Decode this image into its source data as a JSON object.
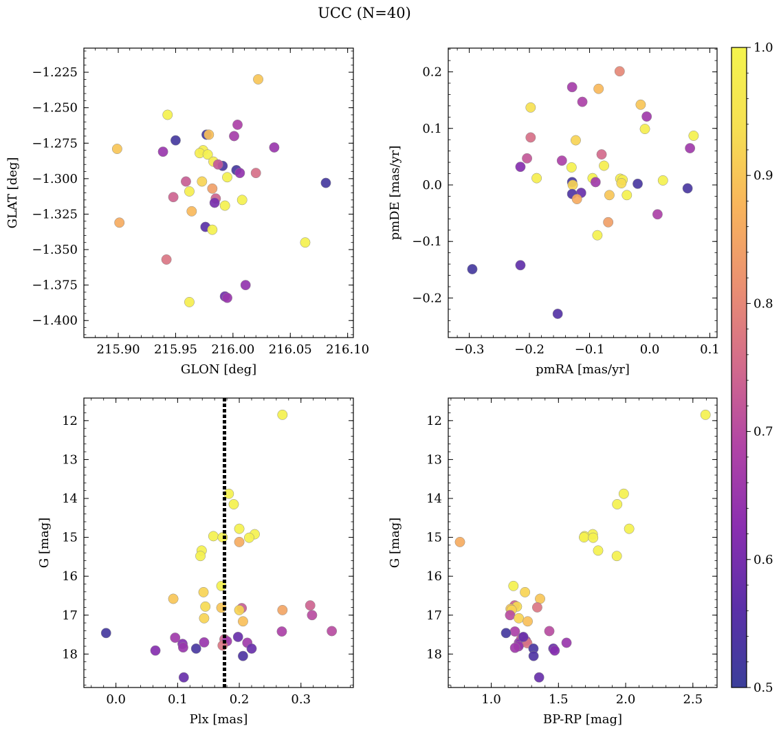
{
  "figure": {
    "title": "UCC (N=40)"
  },
  "colorbar": {
    "range": [
      0.5,
      1.0
    ],
    "ticks": [
      0.5,
      0.6,
      0.7,
      0.8,
      0.9,
      1.0
    ],
    "tick_labels": [
      "0.5",
      "0.6",
      "0.7",
      "0.8",
      "0.9",
      "1.0"
    ],
    "colormap": "plasma",
    "stops": [
      "#3b3f9a",
      "#5b30a8",
      "#8a2fb0",
      "#b044a6",
      "#d26a8c",
      "#ea8f72",
      "#f8b45c",
      "#f6e052",
      "#f4f44e"
    ]
  },
  "chart_data": [
    {
      "type": "scatter",
      "id": "glon-glat",
      "xlabel": "GLON [deg]",
      "ylabel": "GLAT [deg]",
      "xlim": [
        215.87,
        216.105
      ],
      "ylim": [
        -1.412,
        -1.208
      ],
      "y_inverted": false,
      "xticks": [
        215.9,
        215.95,
        216.0,
        216.05,
        216.1
      ],
      "xtick_labels": [
        "215.90",
        "215.95",
        "216.00",
        "216.05",
        "216.10"
      ],
      "yticks": [
        -1.4,
        -1.375,
        -1.35,
        -1.325,
        -1.3,
        -1.275,
        -1.25,
        -1.225
      ],
      "ytick_labels": [
        "−1.400",
        "−1.375",
        "−1.350",
        "−1.325",
        "−1.300",
        "−1.275",
        "−1.250",
        "−1.225"
      ],
      "points": [
        {
          "x": 216.022,
          "y": -1.23,
          "c": 0.9
        },
        {
          "x": 215.943,
          "y": -1.255,
          "c": 0.99
        },
        {
          "x": 215.95,
          "y": -1.273,
          "c": 0.52
        },
        {
          "x": 215.977,
          "y": -1.269,
          "c": 0.52
        },
        {
          "x": 215.979,
          "y": -1.269,
          "c": 0.89
        },
        {
          "x": 216.004,
          "y": -1.262,
          "c": 0.68
        },
        {
          "x": 216.001,
          "y": -1.27,
          "c": 0.67
        },
        {
          "x": 216.036,
          "y": -1.278,
          "c": 0.65
        },
        {
          "x": 215.899,
          "y": -1.279,
          "c": 0.9
        },
        {
          "x": 215.974,
          "y": -1.28,
          "c": 0.98
        },
        {
          "x": 215.971,
          "y": -1.282,
          "c": 0.98
        },
        {
          "x": 215.978,
          "y": -1.283,
          "c": 0.99
        },
        {
          "x": 215.939,
          "y": -1.281,
          "c": 0.65
        },
        {
          "x": 215.983,
          "y": -1.288,
          "c": 0.97
        },
        {
          "x": 215.991,
          "y": -1.291,
          "c": 0.53
        },
        {
          "x": 215.987,
          "y": -1.29,
          "c": 0.72
        },
        {
          "x": 216.003,
          "y": -1.294,
          "c": 0.52
        },
        {
          "x": 216.02,
          "y": -1.296,
          "c": 0.76
        },
        {
          "x": 215.959,
          "y": -1.302,
          "c": 0.73
        },
        {
          "x": 215.973,
          "y": -1.302,
          "c": 0.92
        },
        {
          "x": 215.995,
          "y": -1.299,
          "c": 0.99
        },
        {
          "x": 216.081,
          "y": -1.303,
          "c": 0.52
        },
        {
          "x": 215.982,
          "y": -1.307,
          "c": 0.84
        },
        {
          "x": 215.962,
          "y": -1.309,
          "c": 0.98
        },
        {
          "x": 215.948,
          "y": -1.313,
          "c": 0.74
        },
        {
          "x": 215.985,
          "y": -1.314,
          "c": 0.74
        },
        {
          "x": 216.008,
          "y": -1.315,
          "c": 0.99
        },
        {
          "x": 215.984,
          "y": -1.317,
          "c": 0.6
        },
        {
          "x": 215.993,
          "y": -1.319,
          "c": 0.99
        },
        {
          "x": 215.964,
          "y": -1.323,
          "c": 0.88
        },
        {
          "x": 215.901,
          "y": -1.331,
          "c": 0.86
        },
        {
          "x": 215.976,
          "y": -1.334,
          "c": 0.56
        },
        {
          "x": 215.982,
          "y": -1.336,
          "c": 0.99
        },
        {
          "x": 216.063,
          "y": -1.345,
          "c": 0.99
        },
        {
          "x": 215.942,
          "y": -1.357,
          "c": 0.77
        },
        {
          "x": 216.011,
          "y": -1.375,
          "c": 0.64
        },
        {
          "x": 215.993,
          "y": -1.383,
          "c": 0.59
        },
        {
          "x": 215.995,
          "y": -1.384,
          "c": 0.65
        },
        {
          "x": 215.962,
          "y": -1.387,
          "c": 0.98
        },
        {
          "x": 216.006,
          "y": -1.296,
          "c": 0.64
        }
      ]
    },
    {
      "type": "scatter",
      "id": "pmra-pmde",
      "xlabel": "pmRA [mas/yr]",
      "ylabel": "pmDE [mas/yr]",
      "xlim": [
        -0.335,
        0.112
      ],
      "ylim": [
        -0.27,
        0.242
      ],
      "y_inverted": false,
      "xticks": [
        -0.3,
        -0.2,
        -0.1,
        0.0,
        0.1
      ],
      "xtick_labels": [
        "−0.3",
        "−0.2",
        "−0.1",
        "0.0",
        "0.1"
      ],
      "yticks": [
        -0.2,
        -0.1,
        0.0,
        0.1,
        0.2
      ],
      "ytick_labels": [
        "−0.2",
        "−0.1",
        "0.0",
        "0.1",
        "0.2"
      ],
      "points": [
        {
          "x": -0.05,
          "y": 0.201,
          "c": 0.8
        },
        {
          "x": -0.129,
          "y": 0.173,
          "c": 0.67
        },
        {
          "x": -0.085,
          "y": 0.17,
          "c": 0.88
        },
        {
          "x": -0.112,
          "y": 0.147,
          "c": 0.68
        },
        {
          "x": -0.015,
          "y": 0.142,
          "c": 0.9
        },
        {
          "x": -0.198,
          "y": 0.137,
          "c": 0.94
        },
        {
          "x": -0.005,
          "y": 0.121,
          "c": 0.66
        },
        {
          "x": -0.008,
          "y": 0.099,
          "c": 0.98
        },
        {
          "x": 0.073,
          "y": 0.087,
          "c": 0.99
        },
        {
          "x": -0.198,
          "y": 0.084,
          "c": 0.76
        },
        {
          "x": -0.123,
          "y": 0.079,
          "c": 0.92
        },
        {
          "x": -0.08,
          "y": 0.054,
          "c": 0.75
        },
        {
          "x": 0.067,
          "y": 0.065,
          "c": 0.66
        },
        {
          "x": -0.204,
          "y": 0.047,
          "c": 0.72
        },
        {
          "x": -0.146,
          "y": 0.043,
          "c": 0.68
        },
        {
          "x": -0.215,
          "y": 0.032,
          "c": 0.62
        },
        {
          "x": -0.13,
          "y": 0.031,
          "c": 0.99
        },
        {
          "x": -0.076,
          "y": 0.034,
          "c": 0.98
        },
        {
          "x": -0.188,
          "y": 0.012,
          "c": 0.98
        },
        {
          "x": -0.095,
          "y": 0.012,
          "c": 0.99
        },
        {
          "x": -0.049,
          "y": 0.011,
          "c": 0.98
        },
        {
          "x": -0.045,
          "y": 0.009,
          "c": 0.98
        },
        {
          "x": 0.022,
          "y": 0.008,
          "c": 0.99
        },
        {
          "x": -0.129,
          "y": 0.005,
          "c": 0.53
        },
        {
          "x": -0.09,
          "y": 0.005,
          "c": 0.66
        },
        {
          "x": -0.047,
          "y": 0.003,
          "c": 0.93
        },
        {
          "x": -0.02,
          "y": 0.002,
          "c": 0.53
        },
        {
          "x": -0.128,
          "y": 0.0,
          "c": 0.92
        },
        {
          "x": 0.063,
          "y": -0.006,
          "c": 0.53
        },
        {
          "x": -0.114,
          "y": -0.014,
          "c": 0.58
        },
        {
          "x": -0.129,
          "y": -0.016,
          "c": 0.54
        },
        {
          "x": -0.067,
          "y": -0.018,
          "c": 0.9
        },
        {
          "x": -0.038,
          "y": -0.018,
          "c": 0.99
        },
        {
          "x": -0.121,
          "y": -0.025,
          "c": 0.86
        },
        {
          "x": 0.013,
          "y": -0.052,
          "c": 0.68
        },
        {
          "x": -0.069,
          "y": -0.066,
          "c": 0.84
        },
        {
          "x": -0.087,
          "y": -0.089,
          "c": 0.99
        },
        {
          "x": -0.215,
          "y": -0.142,
          "c": 0.57
        },
        {
          "x": -0.295,
          "y": -0.149,
          "c": 0.52
        },
        {
          "x": -0.153,
          "y": -0.228,
          "c": 0.55
        }
      ]
    },
    {
      "type": "scatter",
      "id": "plx-g",
      "xlabel": "Plx [mas]",
      "ylabel": "G [mag]",
      "xlim": [
        -0.052,
        0.385
      ],
      "ylim": [
        18.86,
        11.42
      ],
      "y_inverted": true,
      "vline": 0.176,
      "xticks": [
        0.0,
        0.1,
        0.2,
        0.3
      ],
      "xtick_labels": [
        "0.0",
        "0.1",
        "0.2",
        "0.3"
      ],
      "yticks": [
        12,
        13,
        14,
        15,
        16,
        17,
        18
      ],
      "ytick_labels": [
        "12",
        "13",
        "14",
        "15",
        "16",
        "17",
        "18"
      ],
      "points": [
        {
          "x": 0.27,
          "y": 11.85,
          "c": 0.99
        },
        {
          "x": 0.183,
          "y": 13.88,
          "c": 0.99
        },
        {
          "x": 0.191,
          "y": 14.15,
          "c": 0.99
        },
        {
          "x": 0.225,
          "y": 14.92,
          "c": 0.99
        },
        {
          "x": 0.158,
          "y": 14.97,
          "c": 0.99
        },
        {
          "x": 0.2,
          "y": 14.78,
          "c": 0.99
        },
        {
          "x": 0.173,
          "y": 15.0,
          "c": 0.99
        },
        {
          "x": 0.216,
          "y": 15.01,
          "c": 0.99
        },
        {
          "x": 0.2,
          "y": 15.12,
          "c": 0.86
        },
        {
          "x": 0.139,
          "y": 15.34,
          "c": 0.99
        },
        {
          "x": 0.137,
          "y": 15.48,
          "c": 0.99
        },
        {
          "x": 0.171,
          "y": 16.25,
          "c": 0.99
        },
        {
          "x": 0.142,
          "y": 16.41,
          "c": 0.92
        },
        {
          "x": 0.093,
          "y": 16.58,
          "c": 0.9
        },
        {
          "x": 0.145,
          "y": 16.78,
          "c": 0.93
        },
        {
          "x": 0.171,
          "y": 16.81,
          "c": 0.9
        },
        {
          "x": 0.204,
          "y": 16.82,
          "c": 0.73
        },
        {
          "x": 0.2,
          "y": 16.87,
          "c": 0.92
        },
        {
          "x": 0.27,
          "y": 16.87,
          "c": 0.85
        },
        {
          "x": 0.315,
          "y": 16.75,
          "c": 0.74
        },
        {
          "x": 0.318,
          "y": 17.0,
          "c": 0.7
        },
        {
          "x": 0.143,
          "y": 17.08,
          "c": 0.92
        },
        {
          "x": 0.206,
          "y": 17.16,
          "c": 0.89
        },
        {
          "x": 0.269,
          "y": 17.42,
          "c": 0.68
        },
        {
          "x": 0.35,
          "y": 17.41,
          "c": 0.7
        },
        {
          "x": -0.016,
          "y": 17.46,
          "c": 0.52
        },
        {
          "x": 0.096,
          "y": 17.58,
          "c": 0.66
        },
        {
          "x": 0.198,
          "y": 17.56,
          "c": 0.58
        },
        {
          "x": 0.176,
          "y": 17.62,
          "c": 0.74
        },
        {
          "x": 0.18,
          "y": 17.67,
          "c": 0.66
        },
        {
          "x": 0.143,
          "y": 17.7,
          "c": 0.65
        },
        {
          "x": 0.213,
          "y": 17.71,
          "c": 0.66
        },
        {
          "x": 0.108,
          "y": 17.74,
          "c": 0.62
        },
        {
          "x": 0.173,
          "y": 17.78,
          "c": 0.77
        },
        {
          "x": 0.109,
          "y": 17.83,
          "c": 0.65
        },
        {
          "x": 0.13,
          "y": 17.86,
          "c": 0.53
        },
        {
          "x": 0.22,
          "y": 17.86,
          "c": 0.58
        },
        {
          "x": 0.064,
          "y": 17.91,
          "c": 0.62
        },
        {
          "x": 0.206,
          "y": 18.05,
          "c": 0.54
        },
        {
          "x": 0.11,
          "y": 18.6,
          "c": 0.58
        }
      ]
    },
    {
      "type": "scatter",
      "id": "bprp-g",
      "xlabel": "BP-RP [mag]",
      "ylabel": "G [mag]",
      "xlim": [
        0.68,
        2.68
      ],
      "ylim": [
        18.86,
        11.42
      ],
      "y_inverted": true,
      "xticks": [
        1.0,
        1.5,
        2.0,
        2.5
      ],
      "xtick_labels": [
        "1.0",
        "1.5",
        "2.0",
        "2.5"
      ],
      "yticks": [
        12,
        13,
        14,
        15,
        16,
        17,
        18
      ],
      "ytick_labels": [
        "12",
        "13",
        "14",
        "15",
        "16",
        "17",
        "18"
      ],
      "points": [
        {
          "x": 2.594,
          "y": 11.85,
          "c": 0.99
        },
        {
          "x": 1.986,
          "y": 13.88,
          "c": 0.99
        },
        {
          "x": 1.937,
          "y": 14.15,
          "c": 0.99
        },
        {
          "x": 2.026,
          "y": 14.78,
          "c": 0.99
        },
        {
          "x": 1.755,
          "y": 14.92,
          "c": 0.99
        },
        {
          "x": 1.694,
          "y": 14.97,
          "c": 0.99
        },
        {
          "x": 1.69,
          "y": 15.0,
          "c": 0.99
        },
        {
          "x": 1.758,
          "y": 15.01,
          "c": 0.99
        },
        {
          "x": 0.767,
          "y": 15.12,
          "c": 0.86
        },
        {
          "x": 1.795,
          "y": 15.34,
          "c": 0.99
        },
        {
          "x": 1.934,
          "y": 15.48,
          "c": 0.99
        },
        {
          "x": 1.165,
          "y": 16.25,
          "c": 0.99
        },
        {
          "x": 1.251,
          "y": 16.41,
          "c": 0.92
        },
        {
          "x": 1.363,
          "y": 16.58,
          "c": 0.9
        },
        {
          "x": 1.174,
          "y": 16.75,
          "c": 0.74
        },
        {
          "x": 1.191,
          "y": 16.78,
          "c": 0.93
        },
        {
          "x": 1.144,
          "y": 16.84,
          "c": 0.9
        },
        {
          "x": 1.342,
          "y": 16.8,
          "c": 0.77
        },
        {
          "x": 1.152,
          "y": 16.87,
          "c": 0.92
        },
        {
          "x": 1.14,
          "y": 17.0,
          "c": 0.7
        },
        {
          "x": 1.205,
          "y": 17.08,
          "c": 0.92
        },
        {
          "x": 1.271,
          "y": 17.16,
          "c": 0.89
        },
        {
          "x": 1.176,
          "y": 17.42,
          "c": 0.68
        },
        {
          "x": 1.432,
          "y": 17.41,
          "c": 0.7
        },
        {
          "x": 1.11,
          "y": 17.46,
          "c": 0.52
        },
        {
          "x": 1.232,
          "y": 17.58,
          "c": 0.66
        },
        {
          "x": 1.222,
          "y": 17.62,
          "c": 0.74
        },
        {
          "x": 1.258,
          "y": 17.66,
          "c": 0.66
        },
        {
          "x": 1.206,
          "y": 17.71,
          "c": 0.66
        },
        {
          "x": 1.56,
          "y": 17.71,
          "c": 0.65
        },
        {
          "x": 1.212,
          "y": 17.74,
          "c": 0.62
        },
        {
          "x": 1.268,
          "y": 17.72,
          "c": 0.77
        },
        {
          "x": 1.203,
          "y": 17.8,
          "c": 0.65
        },
        {
          "x": 1.177,
          "y": 17.84,
          "c": 0.66
        },
        {
          "x": 1.314,
          "y": 17.86,
          "c": 0.53
        },
        {
          "x": 1.462,
          "y": 17.86,
          "c": 0.58
        },
        {
          "x": 1.472,
          "y": 17.91,
          "c": 0.62
        },
        {
          "x": 1.315,
          "y": 18.05,
          "c": 0.54
        },
        {
          "x": 1.356,
          "y": 18.6,
          "c": 0.58
        },
        {
          "x": 1.239,
          "y": 17.56,
          "c": 0.58
        }
      ]
    }
  ]
}
